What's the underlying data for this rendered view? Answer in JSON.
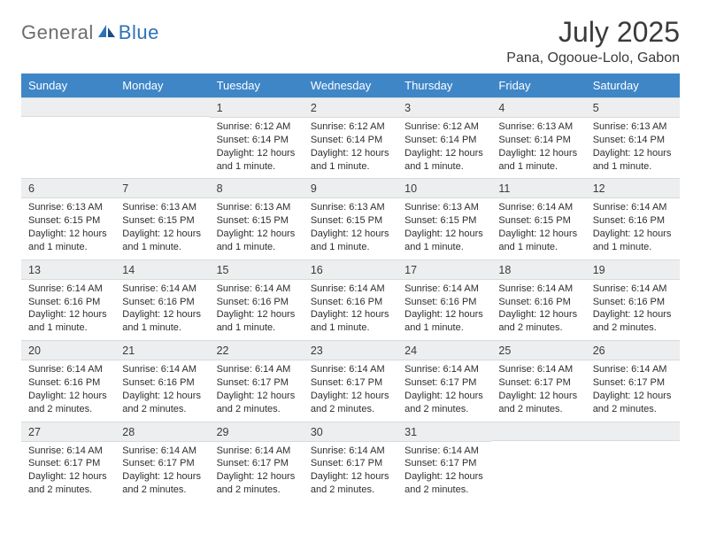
{
  "logo": {
    "text_general": "General",
    "text_blue": "Blue"
  },
  "title": {
    "month": "July 2025",
    "location": "Pana, Ogooue-Lolo, Gabon"
  },
  "colors": {
    "header_bg": "#3f86c7",
    "header_text": "#ffffff",
    "daynum_bg": "#eceeef",
    "border": "#d9dadb",
    "logo_gray": "#6d6d6d",
    "logo_blue": "#2c72b8"
  },
  "weekdays": [
    "Sunday",
    "Monday",
    "Tuesday",
    "Wednesday",
    "Thursday",
    "Friday",
    "Saturday"
  ],
  "weeks": [
    [
      {
        "empty": true
      },
      {
        "empty": true
      },
      {
        "num": "1",
        "sunrise": "Sunrise: 6:12 AM",
        "sunset": "Sunset: 6:14 PM",
        "daylight1": "Daylight: 12 hours",
        "daylight2": "and 1 minute."
      },
      {
        "num": "2",
        "sunrise": "Sunrise: 6:12 AM",
        "sunset": "Sunset: 6:14 PM",
        "daylight1": "Daylight: 12 hours",
        "daylight2": "and 1 minute."
      },
      {
        "num": "3",
        "sunrise": "Sunrise: 6:12 AM",
        "sunset": "Sunset: 6:14 PM",
        "daylight1": "Daylight: 12 hours",
        "daylight2": "and 1 minute."
      },
      {
        "num": "4",
        "sunrise": "Sunrise: 6:13 AM",
        "sunset": "Sunset: 6:14 PM",
        "daylight1": "Daylight: 12 hours",
        "daylight2": "and 1 minute."
      },
      {
        "num": "5",
        "sunrise": "Sunrise: 6:13 AM",
        "sunset": "Sunset: 6:14 PM",
        "daylight1": "Daylight: 12 hours",
        "daylight2": "and 1 minute."
      }
    ],
    [
      {
        "num": "6",
        "sunrise": "Sunrise: 6:13 AM",
        "sunset": "Sunset: 6:15 PM",
        "daylight1": "Daylight: 12 hours",
        "daylight2": "and 1 minute."
      },
      {
        "num": "7",
        "sunrise": "Sunrise: 6:13 AM",
        "sunset": "Sunset: 6:15 PM",
        "daylight1": "Daylight: 12 hours",
        "daylight2": "and 1 minute."
      },
      {
        "num": "8",
        "sunrise": "Sunrise: 6:13 AM",
        "sunset": "Sunset: 6:15 PM",
        "daylight1": "Daylight: 12 hours",
        "daylight2": "and 1 minute."
      },
      {
        "num": "9",
        "sunrise": "Sunrise: 6:13 AM",
        "sunset": "Sunset: 6:15 PM",
        "daylight1": "Daylight: 12 hours",
        "daylight2": "and 1 minute."
      },
      {
        "num": "10",
        "sunrise": "Sunrise: 6:13 AM",
        "sunset": "Sunset: 6:15 PM",
        "daylight1": "Daylight: 12 hours",
        "daylight2": "and 1 minute."
      },
      {
        "num": "11",
        "sunrise": "Sunrise: 6:14 AM",
        "sunset": "Sunset: 6:15 PM",
        "daylight1": "Daylight: 12 hours",
        "daylight2": "and 1 minute."
      },
      {
        "num": "12",
        "sunrise": "Sunrise: 6:14 AM",
        "sunset": "Sunset: 6:16 PM",
        "daylight1": "Daylight: 12 hours",
        "daylight2": "and 1 minute."
      }
    ],
    [
      {
        "num": "13",
        "sunrise": "Sunrise: 6:14 AM",
        "sunset": "Sunset: 6:16 PM",
        "daylight1": "Daylight: 12 hours",
        "daylight2": "and 1 minute."
      },
      {
        "num": "14",
        "sunrise": "Sunrise: 6:14 AM",
        "sunset": "Sunset: 6:16 PM",
        "daylight1": "Daylight: 12 hours",
        "daylight2": "and 1 minute."
      },
      {
        "num": "15",
        "sunrise": "Sunrise: 6:14 AM",
        "sunset": "Sunset: 6:16 PM",
        "daylight1": "Daylight: 12 hours",
        "daylight2": "and 1 minute."
      },
      {
        "num": "16",
        "sunrise": "Sunrise: 6:14 AM",
        "sunset": "Sunset: 6:16 PM",
        "daylight1": "Daylight: 12 hours",
        "daylight2": "and 1 minute."
      },
      {
        "num": "17",
        "sunrise": "Sunrise: 6:14 AM",
        "sunset": "Sunset: 6:16 PM",
        "daylight1": "Daylight: 12 hours",
        "daylight2": "and 1 minute."
      },
      {
        "num": "18",
        "sunrise": "Sunrise: 6:14 AM",
        "sunset": "Sunset: 6:16 PM",
        "daylight1": "Daylight: 12 hours",
        "daylight2": "and 2 minutes."
      },
      {
        "num": "19",
        "sunrise": "Sunrise: 6:14 AM",
        "sunset": "Sunset: 6:16 PM",
        "daylight1": "Daylight: 12 hours",
        "daylight2": "and 2 minutes."
      }
    ],
    [
      {
        "num": "20",
        "sunrise": "Sunrise: 6:14 AM",
        "sunset": "Sunset: 6:16 PM",
        "daylight1": "Daylight: 12 hours",
        "daylight2": "and 2 minutes."
      },
      {
        "num": "21",
        "sunrise": "Sunrise: 6:14 AM",
        "sunset": "Sunset: 6:16 PM",
        "daylight1": "Daylight: 12 hours",
        "daylight2": "and 2 minutes."
      },
      {
        "num": "22",
        "sunrise": "Sunrise: 6:14 AM",
        "sunset": "Sunset: 6:17 PM",
        "daylight1": "Daylight: 12 hours",
        "daylight2": "and 2 minutes."
      },
      {
        "num": "23",
        "sunrise": "Sunrise: 6:14 AM",
        "sunset": "Sunset: 6:17 PM",
        "daylight1": "Daylight: 12 hours",
        "daylight2": "and 2 minutes."
      },
      {
        "num": "24",
        "sunrise": "Sunrise: 6:14 AM",
        "sunset": "Sunset: 6:17 PM",
        "daylight1": "Daylight: 12 hours",
        "daylight2": "and 2 minutes."
      },
      {
        "num": "25",
        "sunrise": "Sunrise: 6:14 AM",
        "sunset": "Sunset: 6:17 PM",
        "daylight1": "Daylight: 12 hours",
        "daylight2": "and 2 minutes."
      },
      {
        "num": "26",
        "sunrise": "Sunrise: 6:14 AM",
        "sunset": "Sunset: 6:17 PM",
        "daylight1": "Daylight: 12 hours",
        "daylight2": "and 2 minutes."
      }
    ],
    [
      {
        "num": "27",
        "sunrise": "Sunrise: 6:14 AM",
        "sunset": "Sunset: 6:17 PM",
        "daylight1": "Daylight: 12 hours",
        "daylight2": "and 2 minutes."
      },
      {
        "num": "28",
        "sunrise": "Sunrise: 6:14 AM",
        "sunset": "Sunset: 6:17 PM",
        "daylight1": "Daylight: 12 hours",
        "daylight2": "and 2 minutes."
      },
      {
        "num": "29",
        "sunrise": "Sunrise: 6:14 AM",
        "sunset": "Sunset: 6:17 PM",
        "daylight1": "Daylight: 12 hours",
        "daylight2": "and 2 minutes."
      },
      {
        "num": "30",
        "sunrise": "Sunrise: 6:14 AM",
        "sunset": "Sunset: 6:17 PM",
        "daylight1": "Daylight: 12 hours",
        "daylight2": "and 2 minutes."
      },
      {
        "num": "31",
        "sunrise": "Sunrise: 6:14 AM",
        "sunset": "Sunset: 6:17 PM",
        "daylight1": "Daylight: 12 hours",
        "daylight2": "and 2 minutes."
      },
      {
        "empty": true
      },
      {
        "empty": true
      }
    ]
  ]
}
